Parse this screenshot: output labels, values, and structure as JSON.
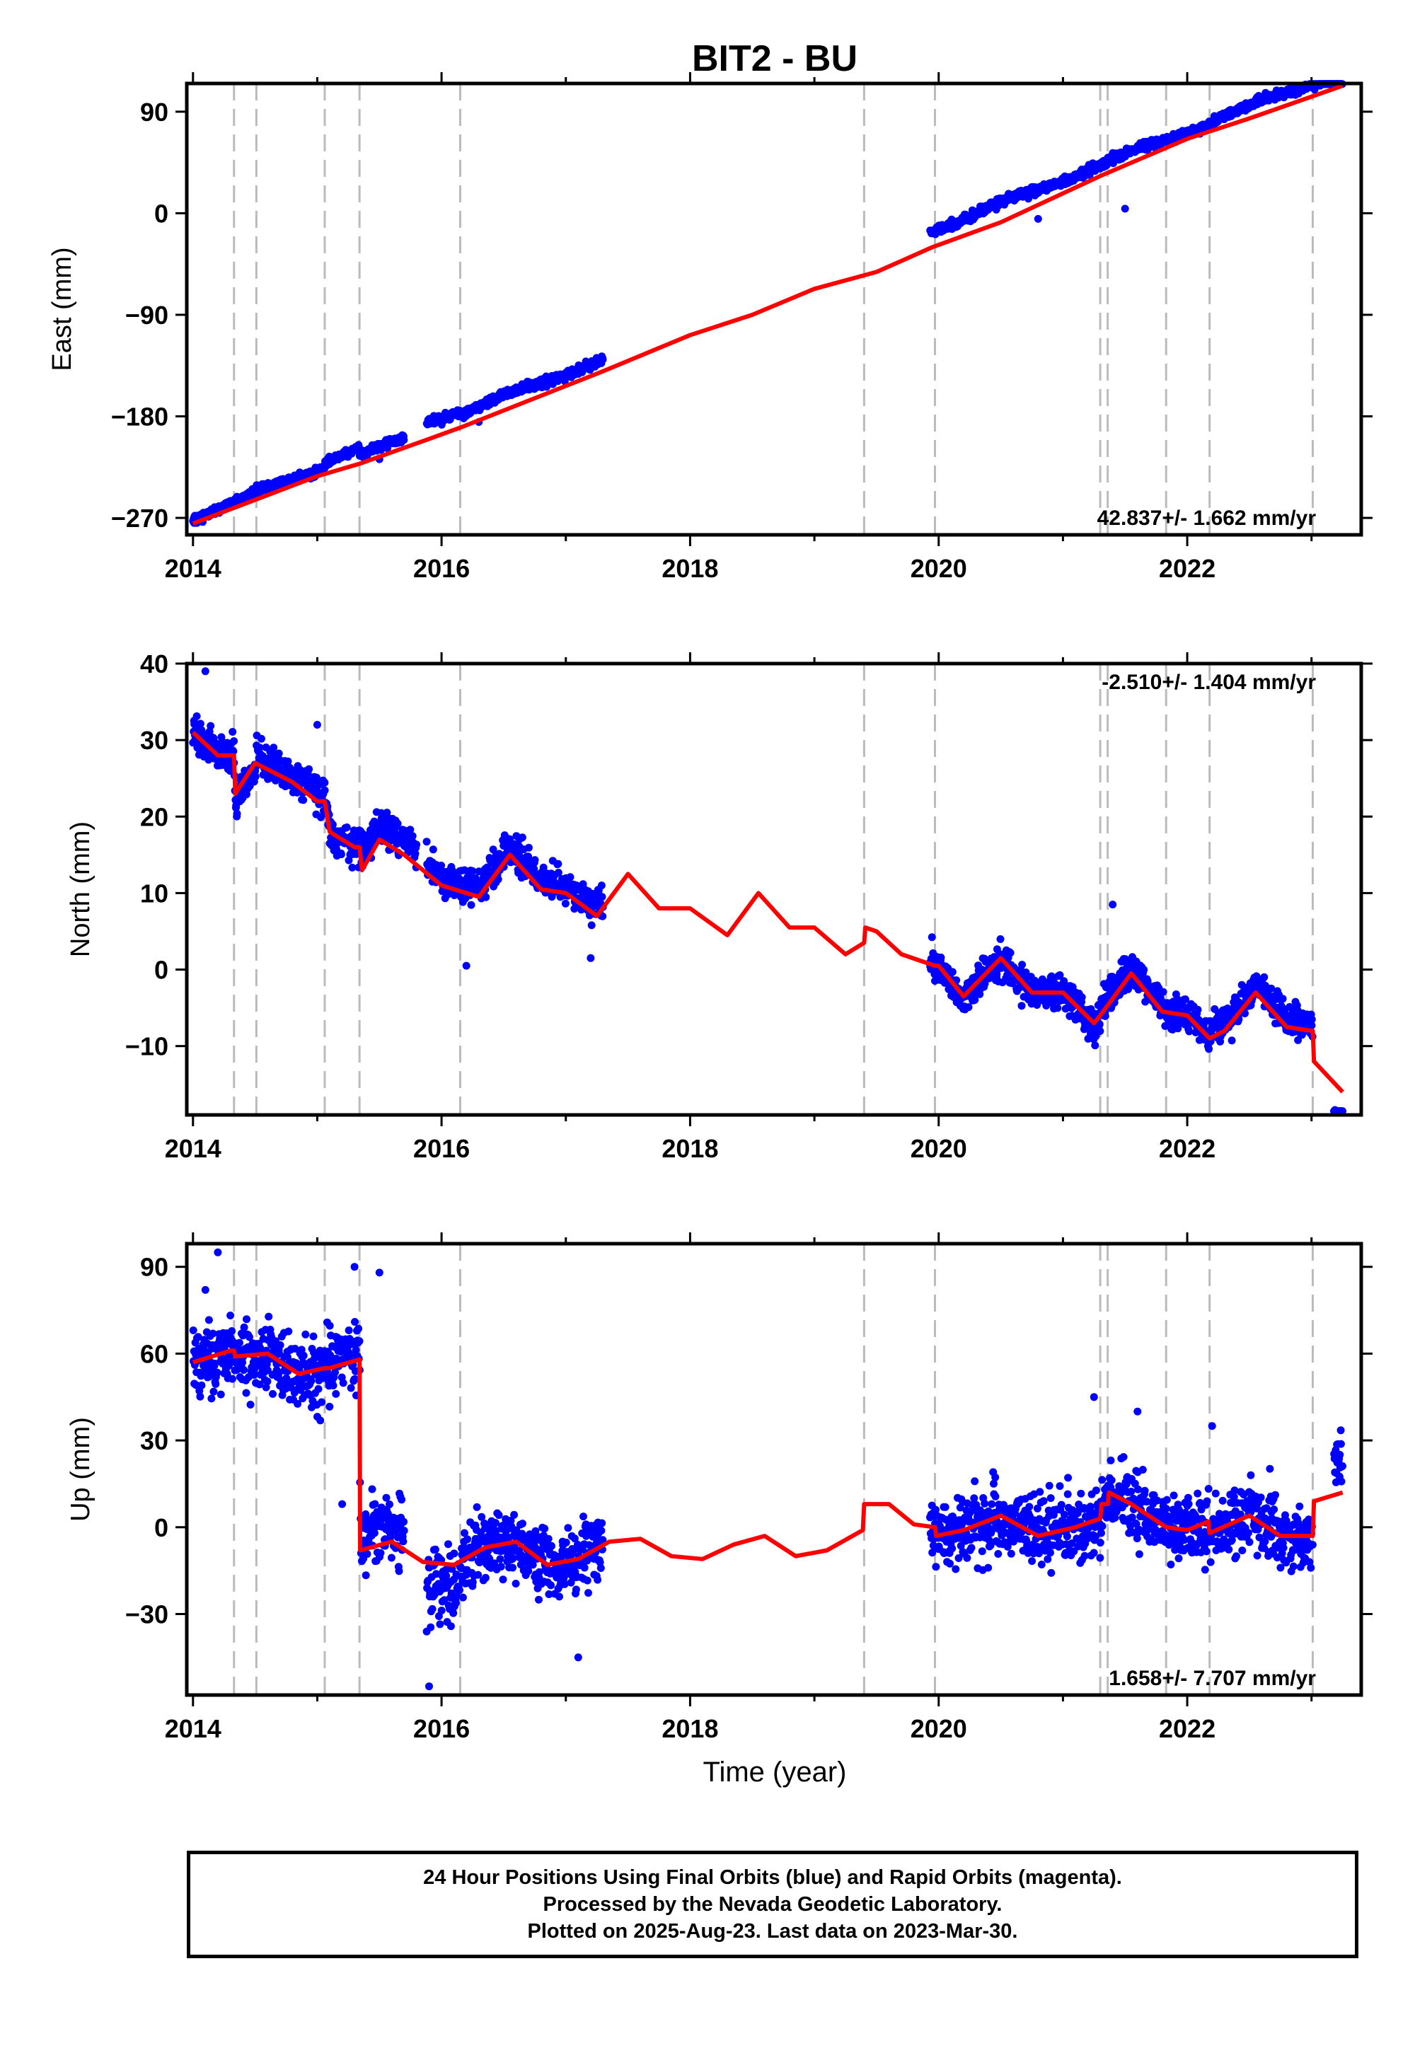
{
  "title": "BIT2 - BU",
  "xlabel": "Time (year)",
  "x_ticks": [
    2014,
    2016,
    2018,
    2020,
    2022
  ],
  "xlim": [
    2013.95,
    2023.4
  ],
  "offset_epochs": [
    2014.33,
    2014.51,
    2015.06,
    2015.34,
    2016.15,
    2019.4,
    2019.97,
    2021.3,
    2021.36,
    2021.83,
    2022.18,
    2023.01
  ],
  "colors": {
    "data": "#0000ff",
    "model": "#ff0000",
    "offset": "#bbbbbb",
    "frame": "#000000"
  },
  "chart_data": [
    {
      "type": "scatter",
      "component": "east",
      "ylabel": "East (mm)",
      "ylim": [
        -285,
        115
      ],
      "y_ticks": [
        -270,
        -180,
        -90,
        0,
        90
      ],
      "y_tick_labels": [
        "−270",
        "−180",
        "−90",
        "0",
        "90"
      ],
      "rate": "42.837+/- 1.662 mm/yr",
      "rate_position": "bottom-right",
      "gen": {
        "type": "linear",
        "a": -270,
        "b": 42.85,
        "seasonal": 2,
        "noise": 3,
        "outliers": [
          [
            2015.5,
            -218
          ],
          [
            2021.5,
            4
          ],
          [
            2016.3,
            -185
          ],
          [
            2020.8,
            -5
          ]
        ]
      },
      "segments": [
        [
          2014.0,
          2014.33,
          0
        ],
        [
          2014.33,
          2015.06,
          0
        ],
        [
          2015.06,
          2015.34,
          5
        ],
        [
          2015.34,
          2015.7,
          -3
        ],
        [
          2015.88,
          2016.15,
          4
        ],
        [
          2016.15,
          2017.3,
          0
        ],
        [
          2019.93,
          2021.3,
          0
        ],
        [
          2021.3,
          2023.25,
          0
        ]
      ],
      "model": [
        [
          2014.0,
          -275
        ],
        [
          2015.0,
          -233
        ],
        [
          2015.34,
          -222
        ],
        [
          2015.9,
          -200
        ],
        [
          2016.15,
          -190
        ],
        [
          2017.3,
          -140
        ],
        [
          2018.0,
          -108
        ],
        [
          2018.5,
          -90
        ],
        [
          2019.0,
          -67
        ],
        [
          2019.5,
          -52
        ],
        [
          2019.95,
          -30
        ],
        [
          2020.5,
          -8
        ],
        [
          2021.3,
          33
        ],
        [
          2022.0,
          66
        ],
        [
          2022.5,
          84
        ],
        [
          2023.25,
          113
        ]
      ]
    },
    {
      "type": "scatter",
      "component": "north",
      "ylabel": "North (mm)",
      "ylim": [
        -19,
        40
      ],
      "y_ticks": [
        -10,
        0,
        10,
        20,
        30,
        40
      ],
      "y_tick_labels": [
        "−10",
        "0",
        "10",
        "20",
        "30",
        "40"
      ],
      "rate": "-2.510+/- 1.404 mm/yr",
      "rate_position": "top-right",
      "gen": {
        "type": "linear",
        "a": 31,
        "b": -4.35,
        "seasonal": 2.8,
        "noise": 1.8,
        "outliers": [
          [
            2014.1,
            39
          ],
          [
            2015.0,
            32
          ],
          [
            2016.2,
            0.5
          ],
          [
            2021.4,
            8.5
          ],
          [
            2017.2,
            1.5
          ]
        ]
      },
      "segments": [
        [
          2014.0,
          2014.33,
          0
        ],
        [
          2014.33,
          2014.51,
          -1
        ],
        [
          2014.51,
          2015.06,
          1
        ],
        [
          2015.06,
          2015.34,
          0
        ],
        [
          2015.34,
          2015.8,
          2
        ],
        [
          2015.88,
          2016.15,
          1
        ],
        [
          2016.15,
          2017.3,
          1
        ],
        [
          2019.93,
          2021.3,
          0
        ],
        [
          2021.3,
          2021.83,
          1
        ],
        [
          2021.83,
          2022.18,
          0
        ],
        [
          2022.18,
          2023.01,
          1
        ],
        [
          2023.18,
          2023.25,
          -5
        ]
      ],
      "model": [
        [
          2014.0,
          31
        ],
        [
          2014.2,
          28
        ],
        [
          2014.33,
          28
        ],
        [
          2014.34,
          23
        ],
        [
          2014.5,
          27
        ],
        [
          2014.8,
          24.5
        ],
        [
          2015.0,
          22
        ],
        [
          2015.06,
          22
        ],
        [
          2015.1,
          18
        ],
        [
          2015.3,
          16
        ],
        [
          2015.34,
          16
        ],
        [
          2015.36,
          13
        ],
        [
          2015.5,
          17
        ],
        [
          2015.7,
          15
        ],
        [
          2016.0,
          11
        ],
        [
          2016.3,
          9.5
        ],
        [
          2016.55,
          15
        ],
        [
          2016.8,
          10.5
        ],
        [
          2017.0,
          10
        ],
        [
          2017.25,
          7
        ],
        [
          2017.5,
          12.5
        ],
        [
          2017.75,
          8
        ],
        [
          2018.0,
          8
        ],
        [
          2018.3,
          4.5
        ],
        [
          2018.55,
          10
        ],
        [
          2018.8,
          5.5
        ],
        [
          2019.0,
          5.5
        ],
        [
          2019.25,
          2
        ],
        [
          2019.4,
          3.5
        ],
        [
          2019.41,
          5.5
        ],
        [
          2019.5,
          5
        ],
        [
          2019.7,
          2
        ],
        [
          2019.97,
          0.5
        ],
        [
          2020.0,
          0.5
        ],
        [
          2020.2,
          -3.5
        ],
        [
          2020.5,
          1.5
        ],
        [
          2020.75,
          -3
        ],
        [
          2021.0,
          -3
        ],
        [
          2021.25,
          -7
        ],
        [
          2021.3,
          -6
        ],
        [
          2021.55,
          -0.5
        ],
        [
          2021.8,
          -5.5
        ],
        [
          2022.0,
          -6
        ],
        [
          2022.18,
          -9
        ],
        [
          2022.3,
          -8
        ],
        [
          2022.55,
          -3
        ],
        [
          2022.8,
          -7.5
        ],
        [
          2023.0,
          -8
        ],
        [
          2023.01,
          -8
        ],
        [
          2023.02,
          -12
        ],
        [
          2023.25,
          -16
        ]
      ]
    },
    {
      "type": "scatter",
      "component": "up",
      "ylabel": "Up (mm)",
      "ylim": [
        -58,
        98
      ],
      "y_ticks": [
        -30,
        0,
        30,
        60,
        90
      ],
      "y_tick_labels": [
        "−30",
        "0",
        "30",
        "60",
        "90"
      ],
      "rate": "1.658+/- 7.707 mm/yr",
      "rate_position": "bottom-right",
      "gen": {
        "type": "model",
        "seasonal": 5,
        "noise": 10,
        "outliers": [
          [
            2014.2,
            95
          ],
          [
            2014.1,
            82
          ],
          [
            2015.3,
            90
          ],
          [
            2015.5,
            88
          ],
          [
            2015.9,
            -55
          ],
          [
            2017.1,
            -45
          ],
          [
            2021.25,
            45
          ],
          [
            2021.6,
            40
          ],
          [
            2022.2,
            35
          ],
          [
            2015.2,
            8
          ]
        ]
      },
      "segments": [
        [
          2014.0,
          2014.33,
          0
        ],
        [
          2014.33,
          2015.06,
          0
        ],
        [
          2015.06,
          2015.34,
          3
        ],
        [
          2015.34,
          2015.7,
          6
        ],
        [
          2015.88,
          2016.15,
          -8
        ],
        [
          2016.15,
          2017.3,
          0
        ],
        [
          2019.93,
          2021.3,
          0
        ],
        [
          2021.3,
          2023.01,
          0
        ],
        [
          2023.18,
          2023.25,
          10
        ]
      ],
      "model": [
        [
          2014.0,
          57
        ],
        [
          2014.3,
          61
        ],
        [
          2014.33,
          61
        ],
        [
          2014.34,
          59
        ],
        [
          2014.6,
          60
        ],
        [
          2014.85,
          53
        ],
        [
          2015.06,
          55
        ],
        [
          2015.1,
          55
        ],
        [
          2015.34,
          58
        ],
        [
          2015.345,
          -8
        ],
        [
          2015.6,
          -5
        ],
        [
          2015.85,
          -12
        ],
        [
          2016.1,
          -13
        ],
        [
          2016.35,
          -7
        ],
        [
          2016.6,
          -5
        ],
        [
          2016.85,
          -13
        ],
        [
          2017.1,
          -11
        ],
        [
          2017.35,
          -5
        ],
        [
          2017.6,
          -4
        ],
        [
          2017.85,
          -10
        ],
        [
          2018.1,
          -11
        ],
        [
          2018.35,
          -6
        ],
        [
          2018.6,
          -3
        ],
        [
          2018.85,
          -10
        ],
        [
          2019.1,
          -8
        ],
        [
          2019.39,
          -1
        ],
        [
          2019.4,
          8
        ],
        [
          2019.6,
          8
        ],
        [
          2019.8,
          1
        ],
        [
          2019.97,
          0
        ],
        [
          2019.98,
          -3
        ],
        [
          2020.2,
          -1
        ],
        [
          2020.5,
          4
        ],
        [
          2020.8,
          -3
        ],
        [
          2021.1,
          0
        ],
        [
          2021.3,
          3
        ],
        [
          2021.31,
          8
        ],
        [
          2021.36,
          8
        ],
        [
          2021.37,
          12
        ],
        [
          2021.55,
          8
        ],
        [
          2021.83,
          0
        ],
        [
          2022.0,
          -1
        ],
        [
          2022.17,
          2
        ],
        [
          2022.18,
          -2
        ],
        [
          2022.5,
          4
        ],
        [
          2022.75,
          -3
        ],
        [
          2023.0,
          -3
        ],
        [
          2023.01,
          -3
        ],
        [
          2023.02,
          9
        ],
        [
          2023.25,
          12
        ]
      ]
    }
  ],
  "footer": {
    "line1": "24 Hour Positions Using Final Orbits (blue) and Rapid Orbits (magenta).",
    "line2": "Processed by the Nevada Geodetic Laboratory.",
    "line3": "Plotted on 2025-Aug-23. Last data on 2023-Mar-30."
  }
}
